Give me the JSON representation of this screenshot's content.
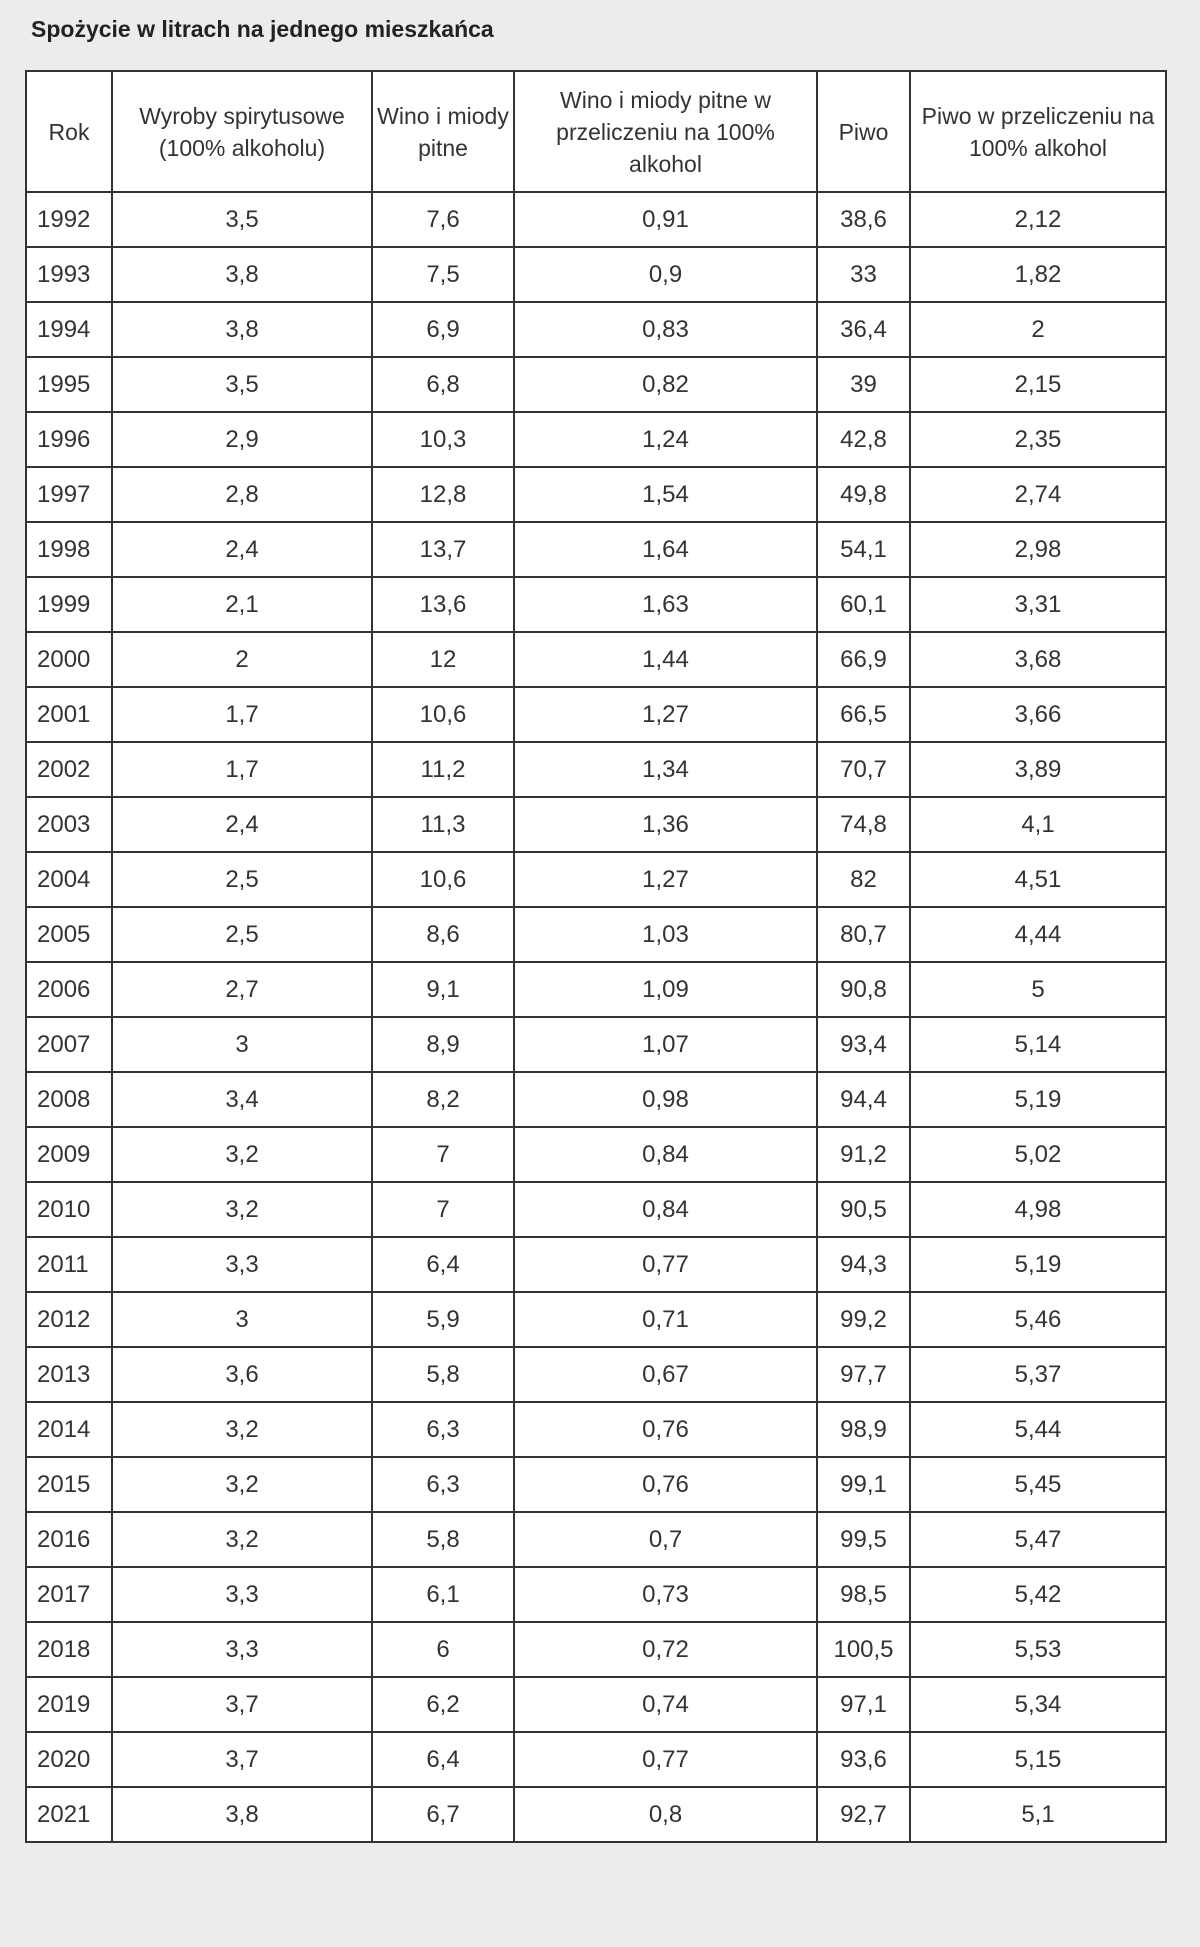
{
  "header": {
    "title": "Spożycie w litrach na jednego mieszkańca"
  },
  "table": {
    "columns": [
      "Rok",
      "Wyroby spirytusowe (100% alkoholu)",
      "Wino i miody pitne",
      "Wino i miody pitne w przeliczeniu na 100% alkohol",
      "Piwo",
      "Piwo w przeliczeniu na 100% alkohol"
    ],
    "rows": [
      [
        "1992",
        "3,5",
        "7,6",
        "0,91",
        "38,6",
        "2,12"
      ],
      [
        "1993",
        "3,8",
        "7,5",
        "0,9",
        "33",
        "1,82"
      ],
      [
        "1994",
        "3,8",
        "6,9",
        "0,83",
        "36,4",
        "2"
      ],
      [
        "1995",
        "3,5",
        "6,8",
        "0,82",
        "39",
        "2,15"
      ],
      [
        "1996",
        "2,9",
        "10,3",
        "1,24",
        "42,8",
        "2,35"
      ],
      [
        "1997",
        "2,8",
        "12,8",
        "1,54",
        "49,8",
        "2,74"
      ],
      [
        "1998",
        "2,4",
        "13,7",
        "1,64",
        "54,1",
        "2,98"
      ],
      [
        "1999",
        "2,1",
        "13,6",
        "1,63",
        "60,1",
        "3,31"
      ],
      [
        "2000",
        "2",
        "12",
        "1,44",
        "66,9",
        "3,68"
      ],
      [
        "2001",
        "1,7",
        "10,6",
        "1,27",
        "66,5",
        "3,66"
      ],
      [
        "2002",
        "1,7",
        "11,2",
        "1,34",
        "70,7",
        "3,89"
      ],
      [
        "2003",
        "2,4",
        "11,3",
        "1,36",
        "74,8",
        "4,1"
      ],
      [
        "2004",
        "2,5",
        "10,6",
        "1,27",
        "82",
        "4,51"
      ],
      [
        "2005",
        "2,5",
        "8,6",
        "1,03",
        "80,7",
        "4,44"
      ],
      [
        "2006",
        "2,7",
        "9,1",
        "1,09",
        "90,8",
        "5"
      ],
      [
        "2007",
        "3",
        "8,9",
        "1,07",
        "93,4",
        "5,14"
      ],
      [
        "2008",
        "3,4",
        "8,2",
        "0,98",
        "94,4",
        "5,19"
      ],
      [
        "2009",
        "3,2",
        "7",
        "0,84",
        "91,2",
        "5,02"
      ],
      [
        "2010",
        "3,2",
        "7",
        "0,84",
        "90,5",
        "4,98"
      ],
      [
        "2011",
        "3,3",
        "6,4",
        "0,77",
        "94,3",
        "5,19"
      ],
      [
        "2012",
        "3",
        "5,9",
        "0,71",
        "99,2",
        "5,46"
      ],
      [
        "2013",
        "3,6",
        "5,8",
        "0,67",
        "97,7",
        "5,37"
      ],
      [
        "2014",
        "3,2",
        "6,3",
        "0,76",
        "98,9",
        "5,44"
      ],
      [
        "2015",
        "3,2",
        "6,3",
        "0,76",
        "99,1",
        "5,45"
      ],
      [
        "2016",
        "3,2",
        "5,8",
        "0,7",
        "99,5",
        "5,47"
      ],
      [
        "2017",
        "3,3",
        "6,1",
        "0,73",
        "98,5",
        "5,42"
      ],
      [
        "2018",
        "3,3",
        "6",
        "0,72",
        "100,5",
        "5,53"
      ],
      [
        "2019",
        "3,7",
        "6,2",
        "0,74",
        "97,1",
        "5,34"
      ],
      [
        "2020",
        "3,7",
        "6,4",
        "0,77",
        "93,6",
        "5,15"
      ],
      [
        "2021",
        "3,8",
        "6,7",
        "0,8",
        "92,7",
        "5,1"
      ]
    ]
  }
}
